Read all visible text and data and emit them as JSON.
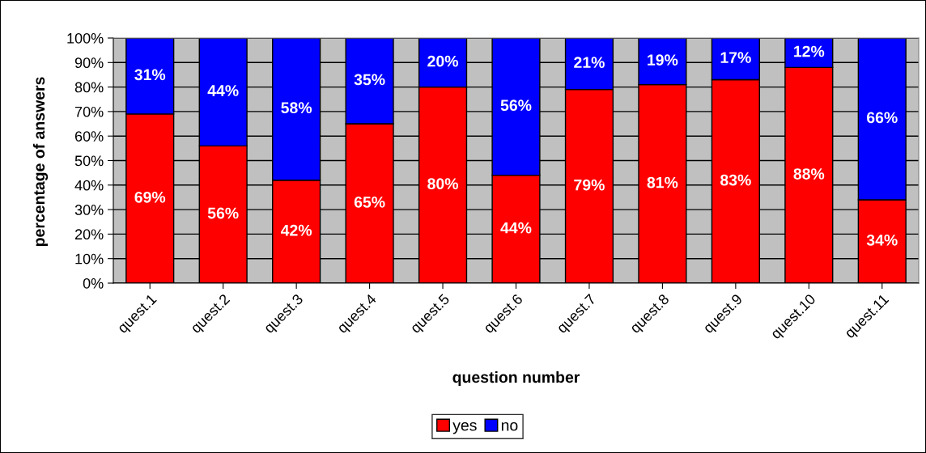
{
  "chart_data": {
    "type": "bar",
    "stacked": true,
    "xlabel": "question number",
    "ylabel": "percentage of answers",
    "categories": [
      "quest.1",
      "quest.2",
      "quest.3",
      "quest.4",
      "quest.5",
      "quest.6",
      "quest.7",
      "quest.8",
      "quest.9",
      "quest.10",
      "quest.11"
    ],
    "series": [
      {
        "name": "yes",
        "color": "#ff0000",
        "values": [
          69,
          56,
          42,
          65,
          80,
          44,
          79,
          81,
          83,
          88,
          34
        ],
        "value_labels": [
          "69%",
          "56%",
          "42%",
          "65%",
          "80%",
          "44%",
          "79%",
          "81%",
          "83%",
          "88%",
          "34%"
        ]
      },
      {
        "name": "no",
        "color": "#0000ff",
        "values": [
          31,
          44,
          58,
          35,
          20,
          56,
          21,
          19,
          17,
          12,
          66
        ],
        "value_labels": [
          "31%",
          "44%",
          "58%",
          "35%",
          "20%",
          "56%",
          "21%",
          "19%",
          "17%",
          "12%",
          "66%"
        ]
      }
    ],
    "ylim": [
      0,
      100
    ],
    "yticks": [
      {
        "value": 0,
        "label": "0%"
      },
      {
        "value": 10,
        "label": "10%"
      },
      {
        "value": 20,
        "label": "20%"
      },
      {
        "value": 30,
        "label": "30%"
      },
      {
        "value": 40,
        "label": "40%"
      },
      {
        "value": 50,
        "label": "50%"
      },
      {
        "value": 60,
        "label": "60%"
      },
      {
        "value": 70,
        "label": "70%"
      },
      {
        "value": 80,
        "label": "80%"
      },
      {
        "value": 90,
        "label": "90%"
      },
      {
        "value": 100,
        "label": "100%"
      }
    ],
    "grid": "y",
    "legend": "bottom"
  }
}
